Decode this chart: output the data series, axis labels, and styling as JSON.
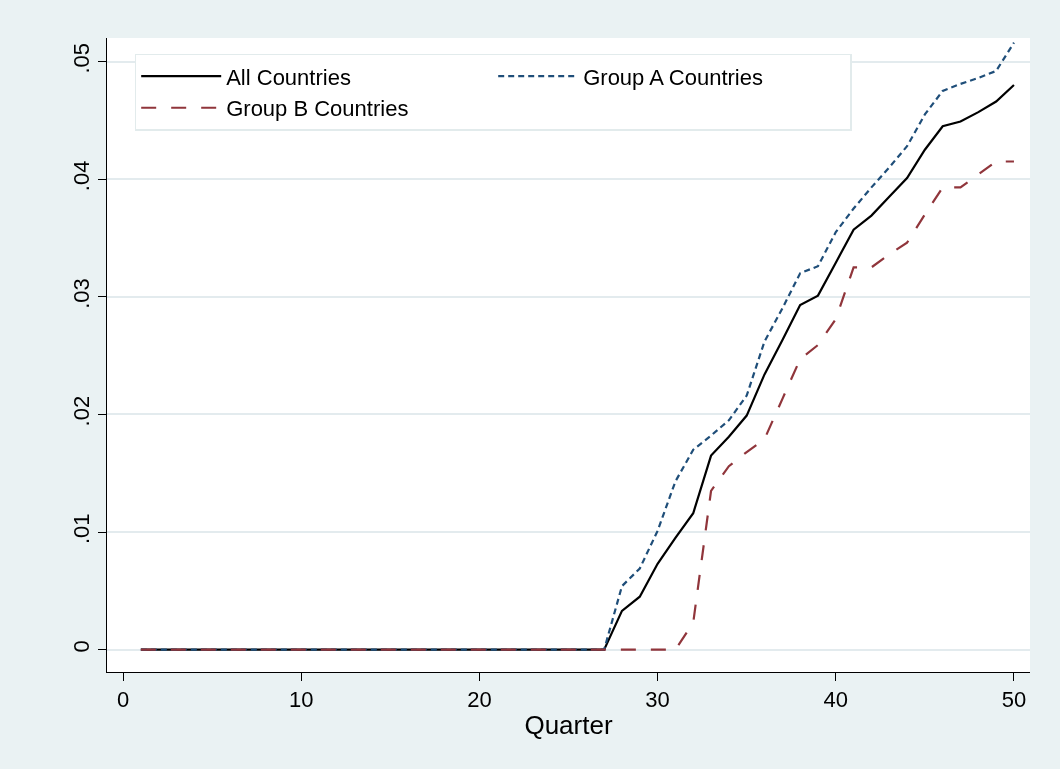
{
  "chart_data": {
    "type": "line",
    "xlabel": "Quarter",
    "x": [
      1,
      2,
      3,
      4,
      5,
      6,
      7,
      8,
      9,
      10,
      11,
      12,
      13,
      14,
      15,
      16,
      17,
      18,
      19,
      20,
      21,
      22,
      23,
      24,
      25,
      26,
      27,
      28,
      29,
      30,
      31,
      32,
      33,
      34,
      35,
      36,
      37,
      38,
      39,
      40,
      41,
      42,
      43,
      44,
      45,
      46,
      47,
      48,
      49,
      50
    ],
    "series": [
      {
        "name": "All Countries",
        "color": "#000000",
        "line_style": "solid",
        "values": [
          0,
          0,
          0,
          0,
          0,
          0,
          0,
          0,
          0,
          0,
          0,
          0,
          0,
          0,
          0,
          0,
          0,
          0,
          0,
          0,
          0,
          0,
          0,
          0,
          0,
          0,
          0,
          0.0033,
          0.0045,
          0.0073,
          0.0095,
          0.0116,
          0.0165,
          0.0181,
          0.0199,
          0.0234,
          0.0263,
          0.0293,
          0.0301,
          0.0329,
          0.0357,
          0.0369,
          0.0385,
          0.0401,
          0.0425,
          0.0445,
          0.0449,
          0.0457,
          0.0466,
          0.048
        ]
      },
      {
        "name": "Group A Countries",
        "color": "#1f4e79",
        "line_style": "dashed",
        "values": [
          0,
          0,
          0,
          0,
          0,
          0,
          0,
          0,
          0,
          0,
          0,
          0,
          0,
          0,
          0,
          0,
          0,
          0,
          0,
          0,
          0,
          0,
          0,
          0,
          0,
          0,
          0,
          0.0054,
          0.0069,
          0.0101,
          0.0143,
          0.017,
          0.0182,
          0.0195,
          0.0216,
          0.0262,
          0.029,
          0.032,
          0.0326,
          0.0355,
          0.0375,
          0.0393,
          0.041,
          0.0428,
          0.0455,
          0.0475,
          0.0481,
          0.0486,
          0.0492,
          0.0516
        ]
      },
      {
        "name": "Group B Countries",
        "color": "#90353b",
        "line_style": "longdash",
        "values": [
          0,
          0,
          0,
          0,
          0,
          0,
          0,
          0,
          0,
          0,
          0,
          0,
          0,
          0,
          0,
          0,
          0,
          0,
          0,
          0,
          0,
          0,
          0,
          0,
          0,
          0,
          0,
          0,
          0,
          0,
          0,
          0.0023,
          0.0135,
          0.0156,
          0.0168,
          0.0179,
          0.0213,
          0.0247,
          0.0259,
          0.0281,
          0.0325,
          0.0325,
          0.0336,
          0.0346,
          0.037,
          0.0393,
          0.0393,
          0.0404,
          0.0415,
          0.0415
        ]
      }
    ],
    "xlim": [
      -0.9,
      50.9
    ],
    "ylim": [
      -0.0019,
      0.052
    ],
    "xticks": [
      0,
      10,
      20,
      30,
      40,
      50
    ],
    "yticks": [
      {
        "value": 0,
        "label": "0"
      },
      {
        "value": 0.01,
        "label": ".01"
      },
      {
        "value": 0.02,
        "label": ".02"
      },
      {
        "value": 0.03,
        "label": ".03"
      },
      {
        "value": 0.04,
        "label": ".04"
      },
      {
        "value": 0.05,
        "label": ".05"
      }
    ],
    "grid": "y",
    "legend": "top left",
    "marker": "none"
  }
}
